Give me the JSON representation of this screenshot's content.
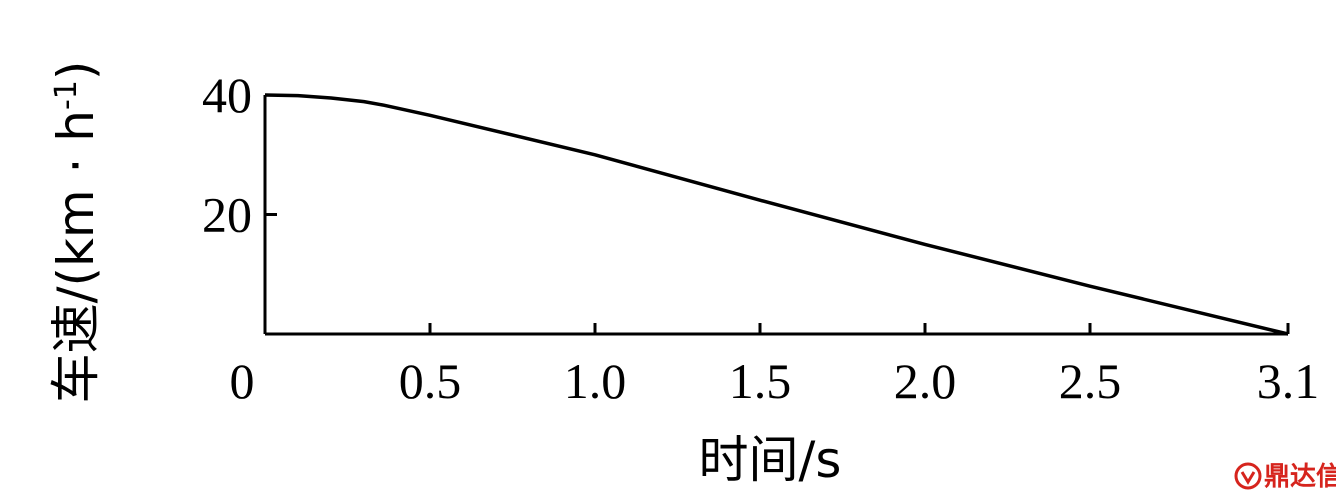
{
  "chart_data": {
    "type": "line",
    "xlabel": "时间/s",
    "ylabel_main": "车速/(km · h",
    "ylabel_sup": "-1",
    "ylabel_close": ")",
    "xlim": [
      0,
      3.1
    ],
    "ylim": [
      0,
      40
    ],
    "x_ticks": [
      {
        "value": 0,
        "label": "0"
      },
      {
        "value": 0.5,
        "label": "0.5"
      },
      {
        "value": 1.0,
        "label": "1.0"
      },
      {
        "value": 1.5,
        "label": "1.5"
      },
      {
        "value": 2.0,
        "label": "2.0"
      },
      {
        "value": 2.5,
        "label": "2.5"
      },
      {
        "value": 3.1,
        "label": "3.1"
      }
    ],
    "y_ticks": [
      {
        "value": 20,
        "label": "20"
      },
      {
        "value": 40,
        "label": "40"
      }
    ],
    "grid": false,
    "series": [
      {
        "points": [
          [
            0,
            40
          ],
          [
            0.1,
            39.9
          ],
          [
            0.2,
            39.5
          ],
          [
            0.3,
            38.9
          ],
          [
            0.36,
            38.3
          ],
          [
            0.5,
            36.6
          ],
          [
            1.0,
            30.0
          ],
          [
            1.5,
            22.4
          ],
          [
            2.0,
            15.0
          ],
          [
            2.5,
            8.0
          ],
          [
            3.1,
            0
          ]
        ]
      }
    ]
  },
  "watermark": {
    "text": "鼎达信",
    "color": "#d6241d"
  }
}
